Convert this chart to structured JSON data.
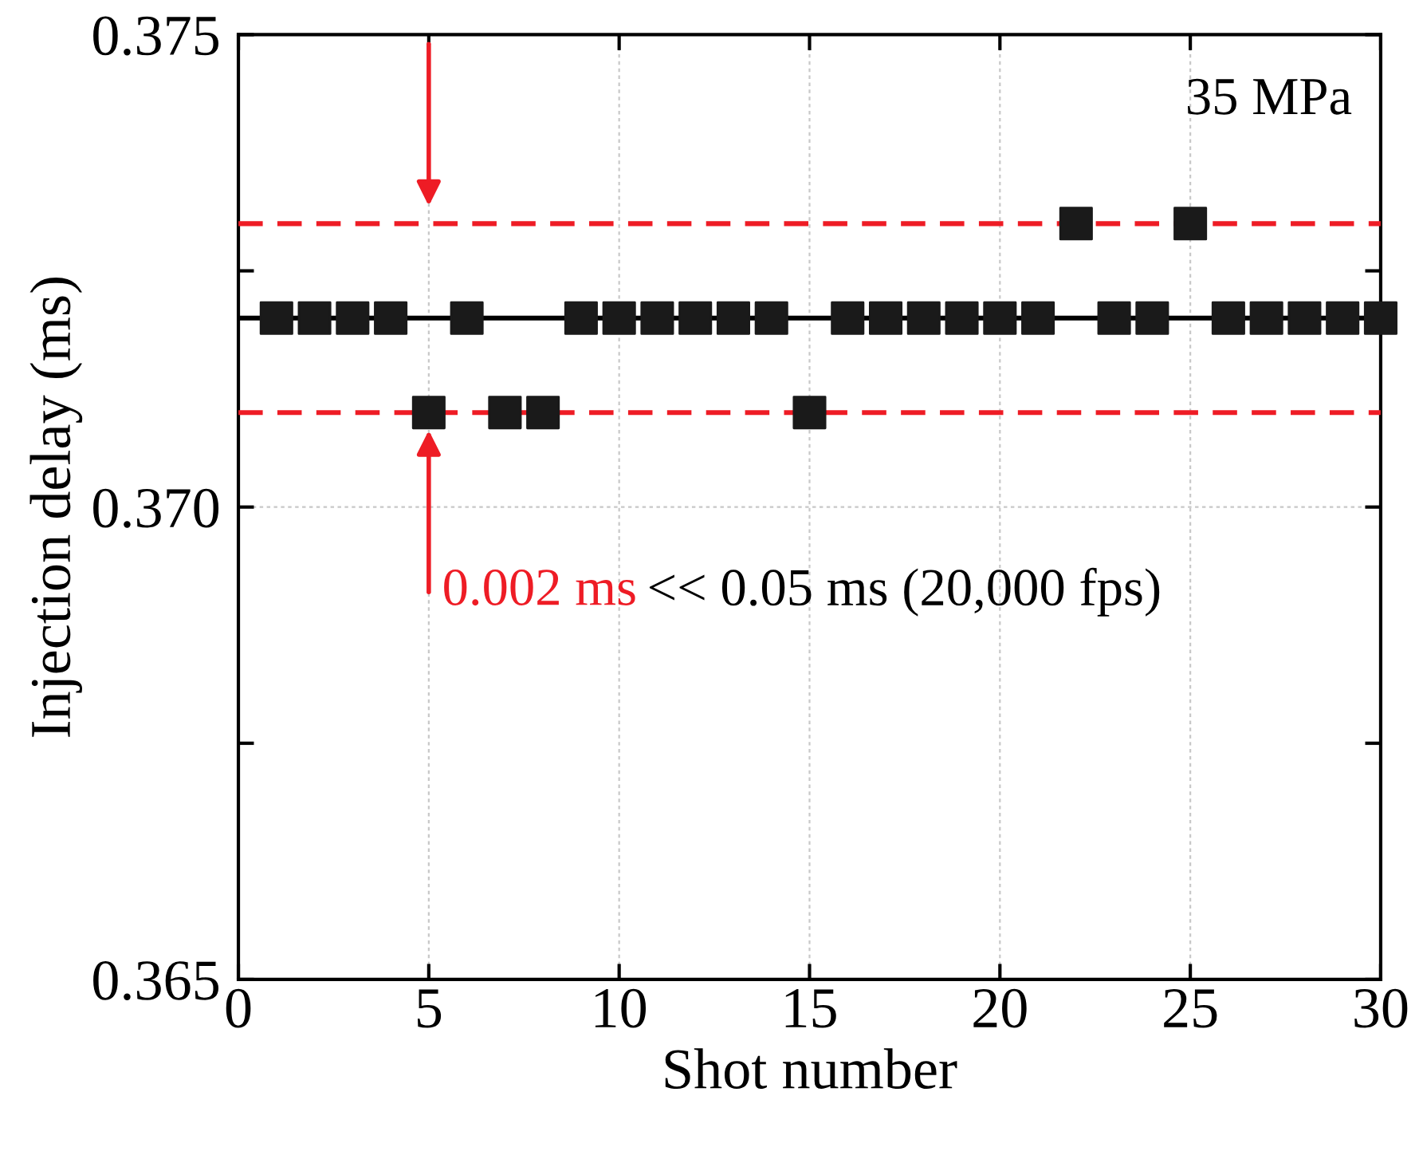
{
  "chart_data": {
    "type": "scatter",
    "xlabel": "Shot number",
    "ylabel": "Injection delay (ms)",
    "x": [
      1,
      2,
      3,
      4,
      5,
      6,
      7,
      8,
      9,
      10,
      11,
      12,
      13,
      14,
      15,
      16,
      17,
      18,
      19,
      20,
      21,
      22,
      23,
      24,
      25,
      26,
      27,
      28,
      29,
      30
    ],
    "series": [
      {
        "color": "#1a1a1a",
        "values": [
          0.372,
          0.372,
          0.372,
          0.372,
          0.371,
          0.372,
          0.371,
          0.371,
          0.372,
          0.372,
          0.372,
          0.372,
          0.372,
          0.372,
          0.371,
          0.372,
          0.372,
          0.372,
          0.372,
          0.372,
          0.372,
          0.373,
          0.372,
          0.372,
          0.373,
          0.372,
          0.372,
          0.372,
          0.372,
          0.372
        ]
      }
    ],
    "marker": "square",
    "xlim": [
      0,
      30
    ],
    "ylim": [
      0.365,
      0.375
    ],
    "xticks": [
      0,
      5,
      10,
      15,
      20,
      25,
      30
    ],
    "yticks": [
      {
        "value": 0.365,
        "label": "0.365"
      },
      {
        "value": 0.3675,
        "label": null
      },
      {
        "value": 0.37,
        "label": "0.370"
      },
      {
        "value": 0.3725,
        "label": null
      },
      {
        "value": 0.375,
        "label": "0.375"
      }
    ],
    "grid": true,
    "ref_lines": [
      {
        "axis": "y",
        "value": 0.372,
        "color": "#000000",
        "line_style": "solid"
      },
      {
        "axis": "y",
        "value": 0.373,
        "color": "#ee1c25",
        "line_style": "dashed"
      },
      {
        "axis": "y",
        "value": 0.371,
        "color": "#ee1c25",
        "line_style": "dashed"
      }
    ],
    "annotations": [
      "35 MPa",
      {
        "text": "0.002 ms",
        "x": 5,
        "y": 0.371
      },
      "<< 0.05 ms (20,000 fps)"
    ]
  }
}
